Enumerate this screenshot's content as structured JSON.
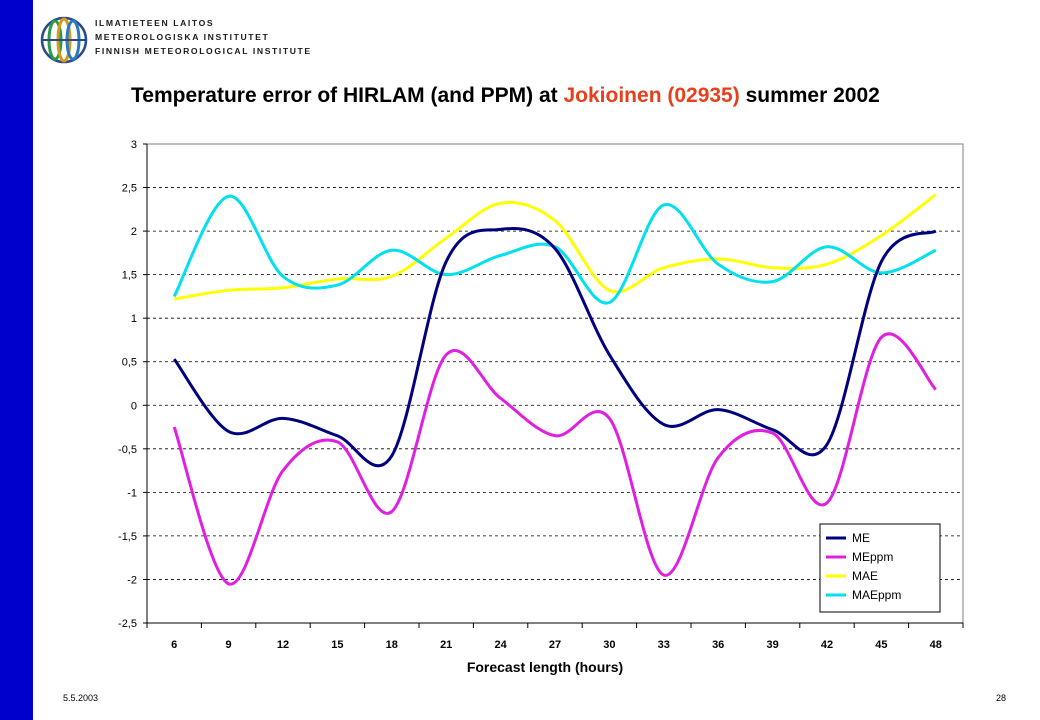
{
  "logo": {
    "lines": [
      "ILMATIETEEN LAITOS",
      "METEOROLOGISKA INSTITUTET",
      "FINNISH METEOROLOGICAL INSTITUTE"
    ]
  },
  "slide": {
    "title_part1": "Temperature error of HIRLAM (and PPM) at ",
    "title_highlight": "Jokioinen (02935)",
    "title_part2": " summer 2002",
    "highlight_color": "#e8401c",
    "date": "5.5.2003",
    "page": "28"
  },
  "chart_data": {
    "type": "line",
    "xlabel": "Forecast length (hours)",
    "ylabel": "",
    "x": [
      6,
      9,
      12,
      15,
      18,
      21,
      24,
      27,
      30,
      33,
      36,
      39,
      42,
      45,
      48
    ],
    "x_tick_labels": [
      "6",
      "9",
      "12",
      "15",
      "18",
      "21",
      "24",
      "27",
      "30",
      "33",
      "36",
      "39",
      "42",
      "45",
      "48"
    ],
    "ylim": [
      -2.5,
      3
    ],
    "y_ticks": [
      3,
      2.5,
      2,
      1.5,
      1,
      0.5,
      0,
      -0.5,
      -1,
      -1.5,
      -2,
      -2.5
    ],
    "y_tick_labels": [
      "3",
      "2,5",
      "2",
      "1,5",
      "1",
      "0,5",
      "0",
      "-0,5",
      "-1",
      "-1,5",
      "-2",
      "-2,5"
    ],
    "grid": "horizontal dashed",
    "legend_position": "bottom-right",
    "series": [
      {
        "name": "ME",
        "color": "#00007f",
        "values": [
          0.53,
          -0.3,
          -0.15,
          -0.35,
          -0.58,
          1.65,
          2.02,
          1.8,
          0.58,
          -0.22,
          -0.05,
          -0.28,
          -0.45,
          1.65,
          2.0
        ]
      },
      {
        "name": "MEppm",
        "color": "#e020e0",
        "values": [
          -0.25,
          -2.05,
          -0.75,
          -0.42,
          -1.22,
          0.58,
          0.08,
          -0.35,
          -0.15,
          -1.95,
          -0.6,
          -0.32,
          -1.12,
          0.78,
          0.18
        ]
      },
      {
        "name": "MAE",
        "color": "#ffff00",
        "values": [
          1.22,
          1.32,
          1.35,
          1.45,
          1.48,
          1.92,
          2.32,
          2.12,
          1.32,
          1.58,
          1.68,
          1.58,
          1.62,
          1.95,
          2.42
        ]
      },
      {
        "name": "MAEppm",
        "color": "#00e0ee",
        "values": [
          1.25,
          2.4,
          1.48,
          1.38,
          1.78,
          1.5,
          1.72,
          1.82,
          1.18,
          2.3,
          1.62,
          1.42,
          1.82,
          1.52,
          1.78
        ]
      }
    ]
  }
}
